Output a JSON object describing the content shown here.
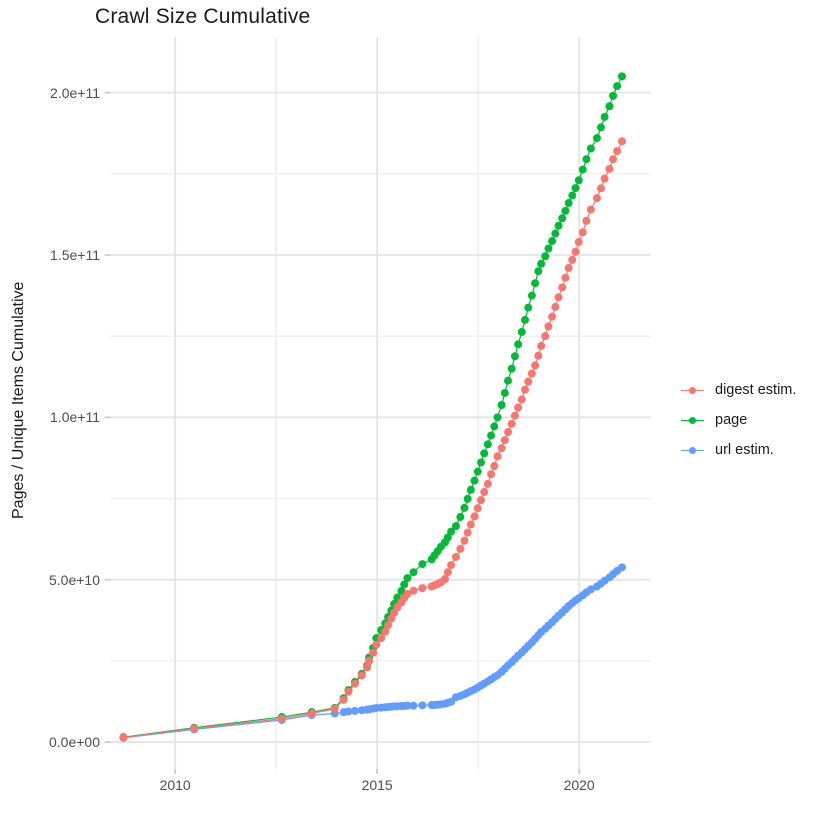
{
  "chart_data": {
    "type": "scatter",
    "title": "Crawl Size Cumulative",
    "xlabel": "",
    "ylabel": "Pages / Unique Items Cumulative",
    "legend_position": "right",
    "grid": true,
    "background": "#ffffff",
    "major_grid_color": "#e4e4e4",
    "minor_grid_color": "#f0f0f0",
    "axis_text_color": "#4d4d4d",
    "xlim": [
      2008.4,
      2021.766
    ],
    "ylim": [
      -8300000000.0,
      217130000000.0
    ],
    "x_ticks": [
      {
        "label": "2010",
        "value": 2010
      },
      {
        "label": "2015",
        "value": 2015
      },
      {
        "label": "2020",
        "value": 2020
      }
    ],
    "x_minor_ticks": [
      2012.5,
      2017.5
    ],
    "y_ticks": [
      {
        "label": "0.0e+00",
        "value": 0
      },
      {
        "label": "5.0e+10",
        "value": 50000000000.0
      },
      {
        "label": "1.0e+11",
        "value": 100000000000.0
      },
      {
        "label": "1.5e+11",
        "value": 150000000000.0
      },
      {
        "label": "2.0e+11",
        "value": 200000000000.0
      }
    ],
    "y_minor_ticks": [
      25000000000.0,
      75000000000.0,
      125000000000.0,
      175000000000.0
    ],
    "values_scale": 1000000000.0,
    "x": [
      2008.72,
      2010.47,
      2012.64,
      2013.38,
      2013.95,
      2014.17,
      2014.29,
      2014.45,
      2014.62,
      2014.75,
      2014.8,
      2014.9,
      2014.98,
      2015.1,
      2015.2,
      2015.27,
      2015.35,
      2015.42,
      2015.5,
      2015.6,
      2015.67,
      2015.75,
      2015.9,
      2016.12,
      2016.35,
      2016.42,
      2016.5,
      2016.58,
      2016.68,
      2016.75,
      2016.83,
      2016.95,
      2017.06,
      2017.16,
      2017.24,
      2017.32,
      2017.41,
      2017.49,
      2017.57,
      2017.65,
      2017.74,
      2017.82,
      2017.9,
      2017.98,
      2018.08,
      2018.16,
      2018.24,
      2018.33,
      2018.41,
      2018.49,
      2018.58,
      2018.66,
      2018.74,
      2018.83,
      2018.91,
      2018.99,
      2019.06,
      2019.16,
      2019.24,
      2019.33,
      2019.41,
      2019.49,
      2019.58,
      2019.66,
      2019.74,
      2019.83,
      2019.91,
      2019.99,
      2020.09,
      2020.18,
      2020.29,
      2020.44,
      2020.54,
      2020.63,
      2020.75,
      2020.84,
      2020.94,
      2021.06
    ],
    "series": [
      {
        "name": "digest estim.",
        "color": "#F8766D",
        "values": [
          1.4,
          4.2,
          7.2,
          8.8,
          10.2,
          13.0,
          15.5,
          18.0,
          20.5,
          23.0,
          25.0,
          27.5,
          30.0,
          32.0,
          34.0,
          36.0,
          38.0,
          39.8,
          41.5,
          43.0,
          44.4,
          45.6,
          46.6,
          47.4,
          47.9,
          48.3,
          48.7,
          49.2,
          50.2,
          52.3,
          54.5,
          57.0,
          59.5,
          62.0,
          64.5,
          67.0,
          69.5,
          72.0,
          74.5,
          77.0,
          79.5,
          82.5,
          85.0,
          88.0,
          90.5,
          93.0,
          95.5,
          98.0,
          100.5,
          103.0,
          105.5,
          108.5,
          111.0,
          113.5,
          116.0,
          119.0,
          122.0,
          125.0,
          128.0,
          131.0,
          134.0,
          137.0,
          140.0,
          143.0,
          146.0,
          148.5,
          151.0,
          154.0,
          157.0,
          160.5,
          164.0,
          167.5,
          170.5,
          173.5,
          176.5,
          179.5,
          182.0,
          185.0
        ]
      },
      {
        "name": "page",
        "color": "#00BA38",
        "values": [
          1.5,
          4.4,
          7.7,
          9.2,
          10.5,
          13.5,
          16.0,
          18.5,
          21.0,
          23.5,
          26.0,
          29.0,
          32.0,
          34.5,
          36.5,
          38.5,
          40.5,
          42.5,
          44.5,
          46.5,
          48.5,
          50.5,
          52.3,
          54.8,
          56.3,
          57.5,
          58.8,
          60.2,
          61.5,
          63.0,
          64.8,
          66.5,
          69.3,
          72.1,
          74.9,
          77.7,
          80.5,
          83.3,
          86.1,
          88.9,
          91.7,
          94.4,
          97.2,
          100.0,
          103.8,
          107.5,
          111.3,
          115.0,
          118.8,
          122.5,
          126.3,
          130.0,
          133.8,
          137.5,
          141.3,
          145.0,
          147.3,
          149.6,
          152.0,
          154.3,
          156.6,
          159.0,
          161.3,
          163.6,
          166.0,
          168.3,
          170.6,
          173.0,
          176.3,
          179.5,
          182.8,
          186.0,
          189.3,
          192.5,
          195.8,
          199.0,
          202.0,
          205.0
        ]
      },
      {
        "name": "url estim.",
        "color": "#619CFF",
        "values": [
          1.3,
          3.9,
          6.8,
          8.3,
          8.8,
          9.2,
          9.4,
          9.6,
          9.8,
          10.0,
          10.1,
          10.3,
          10.5,
          10.6,
          10.7,
          10.8,
          10.9,
          11.0,
          11.0,
          11.1,
          11.1,
          11.2,
          11.2,
          11.3,
          11.4,
          11.4,
          11.5,
          11.6,
          11.8,
          12.1,
          12.4,
          13.8,
          14.2,
          14.7,
          15.2,
          15.7,
          16.2,
          16.8,
          17.4,
          18.0,
          18.7,
          19.3,
          20.0,
          20.6,
          21.6,
          22.6,
          23.6,
          24.6,
          25.6,
          26.6,
          27.6,
          28.6,
          29.6,
          30.7,
          31.8,
          32.9,
          33.9,
          34.9,
          35.9,
          36.9,
          37.9,
          38.9,
          39.9,
          40.9,
          41.9,
          42.8,
          43.6,
          44.3,
          45.2,
          46.1,
          47.0,
          47.9,
          48.8,
          49.7,
          50.7,
          51.7,
          52.7,
          53.8
        ]
      }
    ]
  }
}
